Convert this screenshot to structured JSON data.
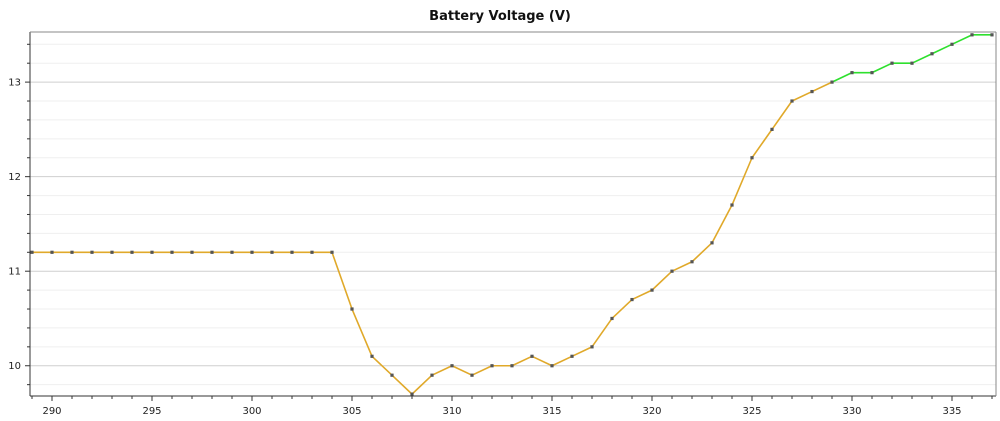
{
  "chart_data": {
    "type": "line",
    "title": "Battery Voltage (V)",
    "xlabel": "",
    "ylabel": "",
    "xlim": [
      288.9,
      337.2
    ],
    "ylim": [
      9.68,
      13.53
    ],
    "x_ticks": [
      290,
      295,
      300,
      305,
      310,
      315,
      320,
      325,
      330,
      335
    ],
    "y_ticks": [
      10,
      11,
      12,
      13
    ],
    "grid": true,
    "legend": "none",
    "series": [
      {
        "color": "#e0a92a",
        "x": [
          289,
          290,
          291,
          292,
          293,
          294,
          295,
          296,
          297,
          298,
          299,
          300,
          301,
          302,
          303,
          304,
          305,
          306,
          307,
          308,
          309,
          310,
          311,
          312,
          313,
          314,
          315,
          316,
          317,
          318,
          319,
          320,
          321,
          322,
          323,
          324,
          325,
          326,
          327,
          328,
          329
        ],
        "values": [
          11.2,
          11.2,
          11.2,
          11.2,
          11.2,
          11.2,
          11.2,
          11.2,
          11.2,
          11.2,
          11.2,
          11.2,
          11.2,
          11.2,
          11.2,
          11.2,
          10.6,
          10.1,
          9.9,
          9.7,
          9.9,
          10.0,
          9.9,
          10.0,
          10.0,
          10.1,
          10.0,
          10.1,
          10.2,
          10.5,
          10.7,
          10.8,
          11.0,
          11.1,
          11.3,
          11.7,
          12.2,
          12.5,
          12.8,
          12.9,
          13.0
        ]
      },
      {
        "color": "#2ee02e",
        "x": [
          329,
          330,
          331,
          332,
          333,
          334,
          335,
          336,
          337
        ],
        "values": [
          13.0,
          13.1,
          13.1,
          13.2,
          13.2,
          13.3,
          13.4,
          13.5,
          13.5
        ]
      }
    ],
    "marker_color": "#555555",
    "axis_color": "#333333",
    "grid_color": "#dddddd"
  }
}
